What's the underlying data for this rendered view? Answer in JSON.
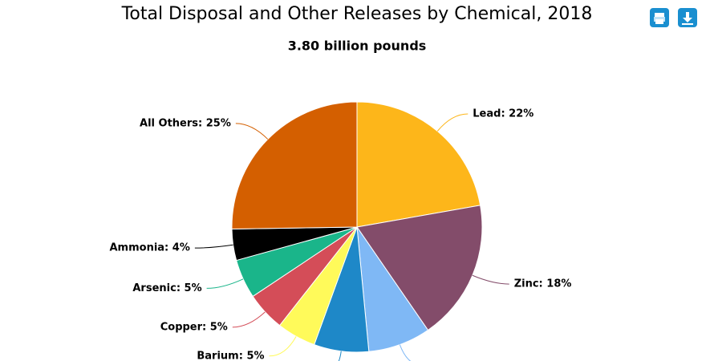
{
  "chart_data": {
    "type": "pie",
    "title": "Total Disposal and Other Releases by Chemical, 2018",
    "subtitle": "3.80 billion pounds",
    "values": [
      22,
      18,
      8,
      7,
      5,
      5,
      5,
      4,
      25
    ],
    "value_labels": [
      "Lead: 22%",
      "Zinc: 18%",
      null,
      null,
      "Barium: 5%",
      "Copper: 5%",
      "Arsenic: 5%",
      "Ammonia: 4%",
      "All Others: 25%"
    ],
    "colors": [
      "#fdb61a",
      "#834c6a",
      "#7fb8f5",
      "#1e88c8",
      "#fffa5a",
      "#d44d58",
      "#1ab58a",
      "#000000",
      "#d45f00"
    ]
  }
}
